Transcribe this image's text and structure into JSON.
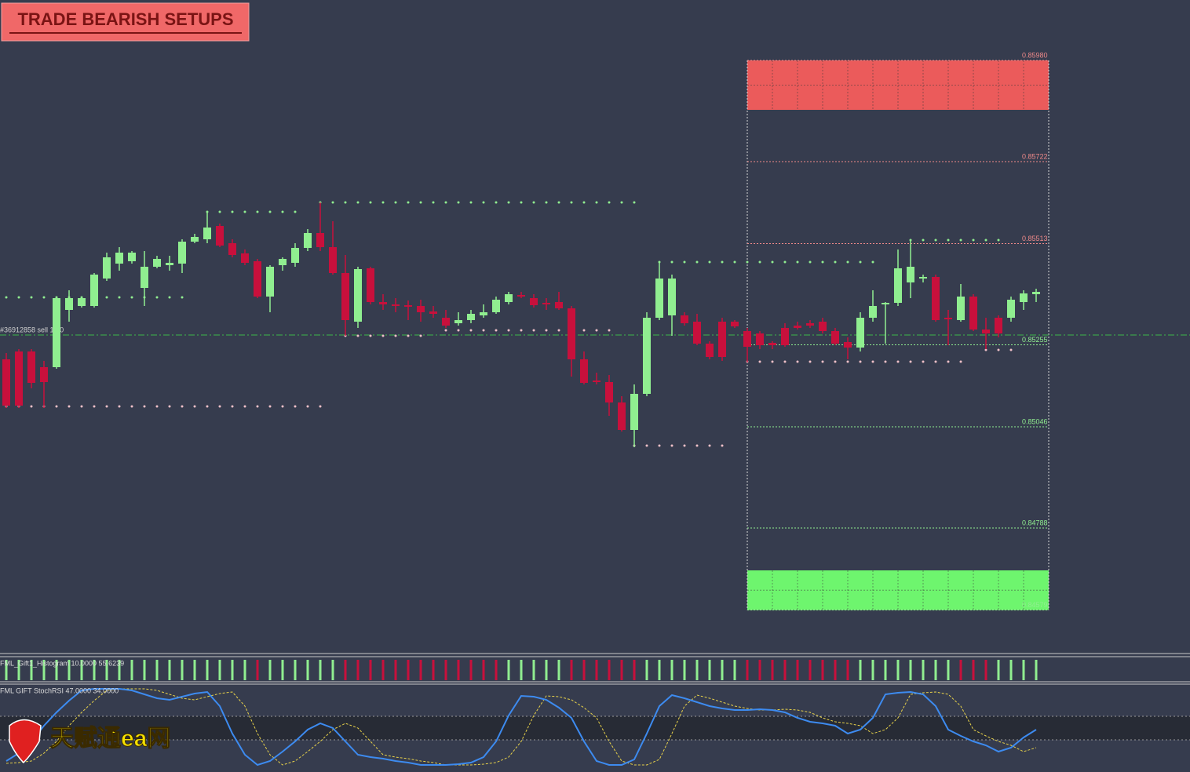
{
  "chart_data": {
    "type": "candlestick",
    "title": "TRADE BEARISH SETUPS",
    "watermark": "天赋通ea网",
    "up_color": "#90ee90",
    "down_color": "#c8103c",
    "ylim": [
      0.84474,
      0.86134
    ],
    "candles": [
      [
        0.85218,
        0.85234,
        0.85094,
        0.851
      ],
      [
        0.85238,
        0.85244,
        0.85094,
        0.851
      ],
      [
        0.85238,
        0.85244,
        0.85144,
        0.85158
      ],
      [
        0.85198,
        0.85214,
        0.85094,
        0.8516
      ],
      [
        0.85198,
        0.85378,
        0.85194,
        0.85374
      ],
      [
        0.85344,
        0.85394,
        0.85314,
        0.85374
      ],
      [
        0.85354,
        0.85378,
        0.8535,
        0.85374
      ],
      [
        0.85354,
        0.85438,
        0.8535,
        0.85434
      ],
      [
        0.85424,
        0.8549,
        0.85418,
        0.85478
      ],
      [
        0.85462,
        0.85504,
        0.85444,
        0.8549
      ],
      [
        0.85468,
        0.85494,
        0.85462,
        0.8549
      ],
      [
        0.854,
        0.85494,
        0.85354,
        0.85454
      ],
      [
        0.85454,
        0.85482,
        0.8545,
        0.85474
      ],
      [
        0.85458,
        0.85482,
        0.85444,
        0.85464
      ],
      [
        0.85462,
        0.85524,
        0.85438,
        0.85518
      ],
      [
        0.85518,
        0.85538,
        0.85514,
        0.8553
      ],
      [
        0.85524,
        0.85594,
        0.85514,
        0.85554
      ],
      [
        0.85558,
        0.85564,
        0.85504,
        0.85508
      ],
      [
        0.85514,
        0.85524,
        0.85478,
        0.85484
      ],
      [
        0.85488,
        0.85498,
        0.85458,
        0.85464
      ],
      [
        0.85468,
        0.85474,
        0.85374,
        0.85378
      ],
      [
        0.85378,
        0.85458,
        0.85338,
        0.85454
      ],
      [
        0.85458,
        0.85478,
        0.85444,
        0.85474
      ],
      [
        0.85464,
        0.85514,
        0.85454,
        0.85502
      ],
      [
        0.85502,
        0.8555,
        0.85494,
        0.8554
      ],
      [
        0.8554,
        0.85618,
        0.85494,
        0.85504
      ],
      [
        0.85504,
        0.8557,
        0.85434,
        0.85438
      ],
      [
        0.85438,
        0.85484,
        0.85278,
        0.85318
      ],
      [
        0.85314,
        0.85454,
        0.85298,
        0.85448
      ],
      [
        0.8545,
        0.85454,
        0.85358,
        0.85364
      ],
      [
        0.85364,
        0.85384,
        0.85344,
        0.85358
      ],
      [
        0.85358,
        0.85374,
        0.85338,
        0.85354
      ],
      [
        0.85356,
        0.85368,
        0.85318,
        0.85352
      ],
      [
        0.85354,
        0.8537,
        0.85314,
        0.85338
      ],
      [
        0.8534,
        0.85354,
        0.85324,
        0.85334
      ],
      [
        0.85324,
        0.85344,
        0.85298,
        0.85304
      ],
      [
        0.8531,
        0.85338,
        0.85304,
        0.85318
      ],
      [
        0.85318,
        0.85344,
        0.8531,
        0.85334
      ],
      [
        0.8533,
        0.85358,
        0.85324,
        0.85338
      ],
      [
        0.85338,
        0.85378,
        0.85334,
        0.8537
      ],
      [
        0.85364,
        0.8539,
        0.85358,
        0.85384
      ],
      [
        0.85382,
        0.8539,
        0.85374,
        0.85378
      ],
      [
        0.85374,
        0.85384,
        0.8535,
        0.85356
      ],
      [
        0.85362,
        0.85374,
        0.85344,
        0.85358
      ],
      [
        0.85364,
        0.8539,
        0.85344,
        0.85348
      ],
      [
        0.85348,
        0.85354,
        0.85174,
        0.85218
      ],
      [
        0.85218,
        0.85238,
        0.85154,
        0.85158
      ],
      [
        0.85164,
        0.85184,
        0.85154,
        0.8516
      ],
      [
        0.8516,
        0.85178,
        0.85074,
        0.85108
      ],
      [
        0.85108,
        0.85124,
        0.85034,
        0.85038
      ],
      [
        0.85038,
        0.85154,
        0.84994,
        0.8513
      ],
      [
        0.8513,
        0.85338,
        0.85124,
        0.85324
      ],
      [
        0.85324,
        0.85468,
        0.85318,
        0.85424
      ],
      [
        0.8533,
        0.85434,
        0.85278,
        0.85424
      ],
      [
        0.8533,
        0.85338,
        0.85304,
        0.8531
      ],
      [
        0.85314,
        0.85334,
        0.85254,
        0.85258
      ],
      [
        0.85258,
        0.85264,
        0.85218,
        0.85224
      ],
      [
        0.85314,
        0.85324,
        0.85214,
        0.85224
      ],
      [
        0.85314,
        0.85318,
        0.85298,
        0.85302
      ],
      [
        0.8529,
        0.85298,
        0.8521,
        0.8525
      ],
      [
        0.85284,
        0.8529,
        0.85244,
        0.85254
      ],
      [
        0.8526,
        0.85264,
        0.85244,
        0.85254
      ],
      [
        0.85298,
        0.8531,
        0.8525,
        0.85254
      ],
      [
        0.85304,
        0.85314,
        0.85294,
        0.85298
      ],
      [
        0.8531,
        0.85318,
        0.85298,
        0.85304
      ],
      [
        0.85314,
        0.85324,
        0.85284,
        0.8529
      ],
      [
        0.8529,
        0.85298,
        0.85254,
        0.85258
      ],
      [
        0.85262,
        0.85274,
        0.85218,
        0.85248
      ],
      [
        0.85248,
        0.85338,
        0.85238,
        0.85324
      ],
      [
        0.85324,
        0.85394,
        0.85314,
        0.85354
      ],
      [
        0.85358,
        0.85364,
        0.85258,
        0.85362
      ],
      [
        0.85362,
        0.85498,
        0.85354,
        0.8545
      ],
      [
        0.85414,
        0.85524,
        0.85374,
        0.85454
      ],
      [
        0.85424,
        0.85434,
        0.85414,
        0.85428
      ],
      [
        0.85428,
        0.85434,
        0.85314,
        0.85318
      ],
      [
        0.85324,
        0.85344,
        0.85254,
        0.85322
      ],
      [
        0.85318,
        0.8541,
        0.85314,
        0.85378
      ],
      [
        0.85378,
        0.85384,
        0.8529,
        0.85294
      ],
      [
        0.85294,
        0.85324,
        0.85244,
        0.85284
      ],
      [
        0.85324,
        0.8533,
        0.85274,
        0.85284
      ],
      [
        0.85324,
        0.85378,
        0.85314,
        0.8537
      ],
      [
        0.85364,
        0.85394,
        0.85344,
        0.85386
      ],
      [
        0.85384,
        0.85398,
        0.85364,
        0.8539
      ]
    ],
    "dotted_levels": [
      {
        "from": 16,
        "to": 24,
        "price": 0.85594,
        "color": "#90ee90"
      },
      {
        "from": 25,
        "to": 51,
        "price": 0.85618,
        "color": "#90ee90"
      },
      {
        "from": 0,
        "to": 15,
        "price": 0.85376,
        "color": "#90ee90"
      },
      {
        "from": 0,
        "to": 26,
        "price": 0.85098,
        "color": "#f0c0c8"
      },
      {
        "from": 27,
        "to": 34,
        "price": 0.85278,
        "color": "#f0c0c8"
      },
      {
        "from": 35,
        "to": 49,
        "price": 0.85292,
        "color": "#f0c0c8"
      },
      {
        "from": 50,
        "to": 58,
        "price": 0.84998,
        "color": "#f0c0c8"
      },
      {
        "from": 52,
        "to": 70,
        "price": 0.85466,
        "color": "#90ee90"
      },
      {
        "from": 72,
        "to": 80,
        "price": 0.85522,
        "color": "#90ee90"
      },
      {
        "from": 59,
        "to": 77,
        "price": 0.85212,
        "color": "#f0c0c8"
      },
      {
        "from": 78,
        "to": 81,
        "price": 0.85242,
        "color": "#f0c0c8"
      }
    ],
    "order_price": 0.8528,
    "order_label": "#36912858 sell 1.00",
    "box": [
      59,
      83
    ],
    "levels": [
      {
        "value": 0.8598,
        "label": "0.85980"
      },
      0.85722,
      0.85513,
      0.85255,
      0.85046,
      0.84788,
      0.84579
    ],
    "zones": [
      {
        "from": 0.85854,
        "to": 0.8598,
        "color": "#eb5b5b"
      },
      {
        "from": 0.84579,
        "to": 0.8468,
        "color": "#6ef56e"
      }
    ],
    "histogram_label": "FML_Gift1_Histogram 10.0000 55.6239",
    "histogram": [
      "up",
      "up",
      "up",
      "up",
      "up",
      "up",
      "up",
      "up",
      "up",
      "up",
      "up",
      "up",
      "up",
      "up",
      "up",
      "up",
      "up",
      "up",
      "up",
      "up",
      "down",
      "up",
      "up",
      "up",
      "up",
      "up",
      "up",
      "down",
      "down",
      "down",
      "down",
      "down",
      "down",
      "down",
      "down",
      "down",
      "down",
      "down",
      "down",
      "down",
      "up",
      "up",
      "up",
      "up",
      "up",
      "down",
      "down",
      "down",
      "down",
      "down",
      "down",
      "up",
      "up",
      "up",
      "up",
      "up",
      "up",
      "up",
      "up",
      "down",
      "down",
      "down",
      "down",
      "down",
      "down",
      "down",
      "down",
      "down",
      "up",
      "up",
      "up",
      "up",
      "up",
      "up",
      "up",
      "up",
      "down",
      "down",
      "down",
      "up",
      "up",
      "up",
      "up"
    ],
    "stoch_label": "FML GIFT StochRSI 47.0000 34.0000",
    "stoch_ylim": [
      0,
      100
    ],
    "stoch_levels": [
      65,
      35
    ],
    "stoch_main": [
      8,
      18,
      33,
      53,
      70,
      85,
      98,
      100,
      100,
      100,
      98,
      93,
      88,
      86,
      90,
      94,
      96,
      78,
      43,
      16,
      3,
      8,
      20,
      33,
      48,
      56,
      50,
      33,
      16,
      13,
      11,
      8,
      6,
      3,
      3,
      3,
      4,
      6,
      13,
      33,
      66,
      91,
      90,
      86,
      76,
      63,
      33,
      8,
      3,
      3,
      10,
      43,
      78,
      92,
      88,
      83,
      78,
      75,
      73,
      73,
      74,
      73,
      70,
      63,
      58,
      56,
      53,
      43,
      48,
      63,
      93,
      95,
      96,
      93,
      78,
      48,
      40,
      33,
      28,
      20,
      25,
      38,
      48
    ],
    "stoch_signal": [
      5,
      6,
      8,
      18,
      33,
      53,
      70,
      85,
      98,
      100,
      100,
      100,
      98,
      93,
      88,
      86,
      90,
      94,
      96,
      78,
      43,
      16,
      3,
      8,
      20,
      33,
      48,
      56,
      50,
      33,
      16,
      13,
      11,
      8,
      6,
      3,
      3,
      3,
      4,
      6,
      13,
      33,
      66,
      91,
      90,
      86,
      76,
      63,
      33,
      8,
      3,
      3,
      10,
      43,
      78,
      92,
      88,
      83,
      78,
      75,
      73,
      73,
      74,
      73,
      70,
      63,
      58,
      56,
      53,
      43,
      48,
      63,
      93,
      95,
      96,
      93,
      78,
      48,
      40,
      33,
      28,
      20,
      25
    ],
    "stoch_main_color": "#3d8bf0",
    "stoch_signal_color": "#e8d24a"
  }
}
